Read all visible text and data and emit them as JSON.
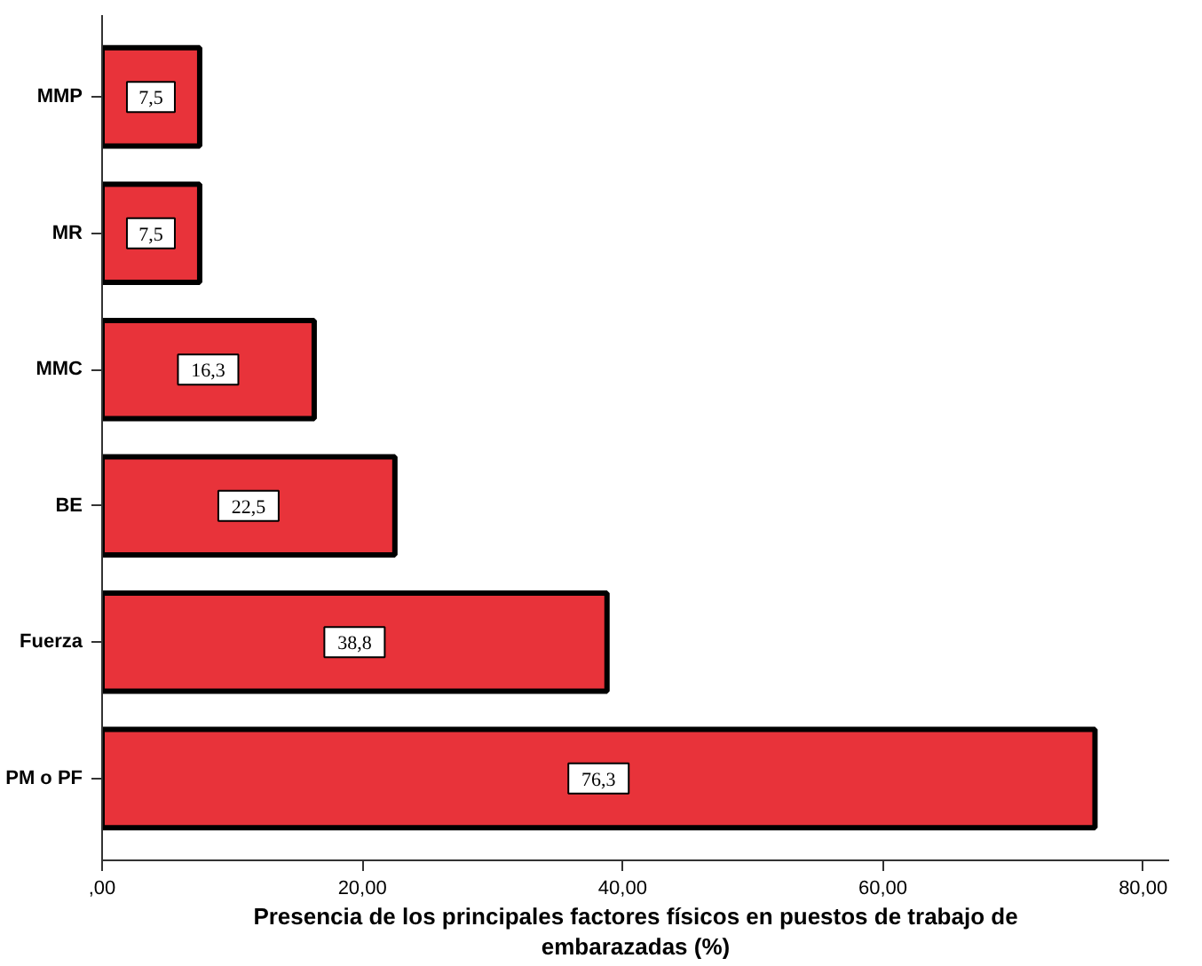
{
  "chart_data": {
    "type": "bar",
    "orientation": "horizontal",
    "xlabel": "Presencia de los principales factores físicos en puestos de trabajo de embarazadas (%)",
    "categories": [
      "MMP",
      "MR",
      "MMC",
      "BE",
      "Fuerza",
      "PM o PF"
    ],
    "values": [
      7.5,
      7.5,
      16.3,
      22.5,
      38.8,
      76.3
    ],
    "value_labels": [
      "7,5",
      "7,5",
      "16,3",
      "22,5",
      "38,8",
      "76,3"
    ],
    "color": "#e8333a",
    "xlim": [
      0,
      82
    ],
    "xticks": [
      {
        "value": 0,
        "label": ",00"
      },
      {
        "value": 20,
        "label": "20,00"
      },
      {
        "value": 40,
        "label": "40,00"
      },
      {
        "value": 60,
        "label": "60,00"
      },
      {
        "value": 80,
        "label": "80,00"
      }
    ],
    "grid": false
  }
}
